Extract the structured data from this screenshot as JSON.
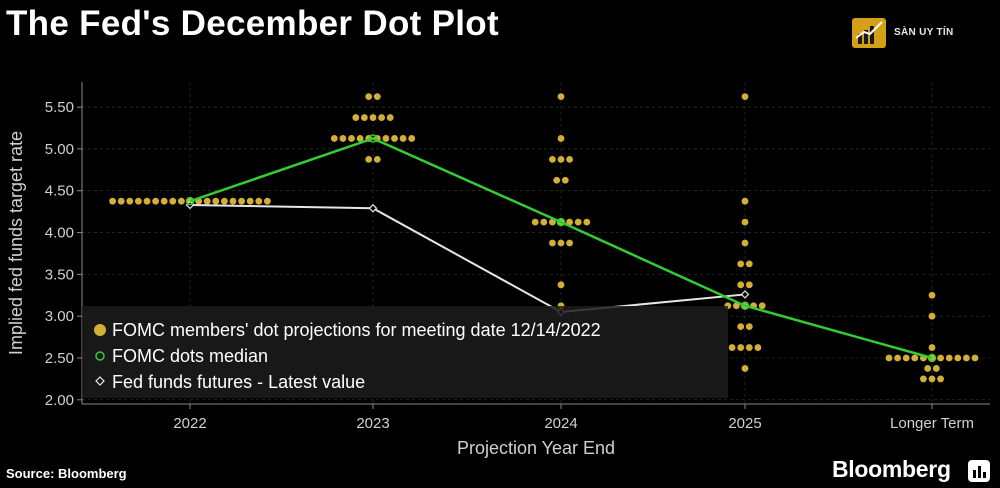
{
  "title": "The Fed's December Dot Plot",
  "source": "Source: Bloomberg",
  "brand": "Bloomberg",
  "watermark": {
    "text": "SÀN UY TÍN"
  },
  "colors": {
    "background": "#000000",
    "dots": "#d4af37",
    "median": "#33cc33",
    "futures": "#e6e6e6",
    "legend_box": "#1c1c1c",
    "grid": "#3a3a3a"
  },
  "chart_data": {
    "type": "scatter",
    "title": "The Fed's December Dot Plot",
    "xlabel": "Projection Year End",
    "ylabel": "Implied fed funds target rate",
    "categories": [
      "2022",
      "2023",
      "2024",
      "2025",
      "Longer Term"
    ],
    "ylim": [
      1.95,
      5.8
    ],
    "yticks": [
      2.0,
      2.5,
      3.0,
      3.5,
      4.0,
      4.5,
      5.0,
      5.5
    ],
    "ytick_labels": [
      "2.00",
      "2.50",
      "3.00",
      "3.50",
      "4.00",
      "4.50",
      "5.00",
      "5.50"
    ],
    "grid": true,
    "legend_position": "bottom-left",
    "series": [
      {
        "name": "FOMC members' dot projections for meeting date 12/14/2022",
        "kind": "dots",
        "points": [
          {
            "x": "2022",
            "y": 4.375,
            "count": 19
          },
          {
            "x": "2023",
            "y": 5.625,
            "count": 2
          },
          {
            "x": "2023",
            "y": 5.375,
            "count": 5
          },
          {
            "x": "2023",
            "y": 5.125,
            "count": 10
          },
          {
            "x": "2023",
            "y": 4.875,
            "count": 2
          },
          {
            "x": "2024",
            "y": 5.625,
            "count": 1
          },
          {
            "x": "2024",
            "y": 5.125,
            "count": 1
          },
          {
            "x": "2024",
            "y": 4.875,
            "count": 3
          },
          {
            "x": "2024",
            "y": 4.625,
            "count": 2
          },
          {
            "x": "2024",
            "y": 4.125,
            "count": 7
          },
          {
            "x": "2024",
            "y": 3.875,
            "count": 3
          },
          {
            "x": "2024",
            "y": 3.375,
            "count": 1
          },
          {
            "x": "2024",
            "y": 3.125,
            "count": 1
          },
          {
            "x": "2025",
            "y": 5.625,
            "count": 1
          },
          {
            "x": "2025",
            "y": 4.375,
            "count": 1
          },
          {
            "x": "2025",
            "y": 4.125,
            "count": 1
          },
          {
            "x": "2025",
            "y": 3.875,
            "count": 1
          },
          {
            "x": "2025",
            "y": 3.625,
            "count": 2
          },
          {
            "x": "2025",
            "y": 3.375,
            "count": 2
          },
          {
            "x": "2025",
            "y": 3.125,
            "count": 5
          },
          {
            "x": "2025",
            "y": 2.875,
            "count": 2
          },
          {
            "x": "2025",
            "y": 2.625,
            "count": 4
          },
          {
            "x": "2025",
            "y": 2.375,
            "count": 1
          },
          {
            "x": "Longer Term",
            "y": 3.25,
            "count": 1
          },
          {
            "x": "Longer Term",
            "y": 3.0,
            "count": 1
          },
          {
            "x": "Longer Term",
            "y": 2.625,
            "count": 1
          },
          {
            "x": "Longer Term",
            "y": 2.5,
            "count": 11
          },
          {
            "x": "Longer Term",
            "y": 2.375,
            "count": 2
          },
          {
            "x": "Longer Term",
            "y": 2.25,
            "count": 3
          }
        ]
      },
      {
        "name": "FOMC dots median",
        "kind": "line",
        "x": [
          "2022",
          "2023",
          "2024",
          "2025",
          "Longer Term"
        ],
        "values": [
          4.375,
          5.125,
          4.125,
          3.125,
          2.5
        ]
      },
      {
        "name": "Fed funds futures - Latest value",
        "kind": "line",
        "x": [
          "2022",
          "2023",
          "2024",
          "2025"
        ],
        "values": [
          4.33,
          4.29,
          3.05,
          3.26
        ]
      }
    ]
  }
}
